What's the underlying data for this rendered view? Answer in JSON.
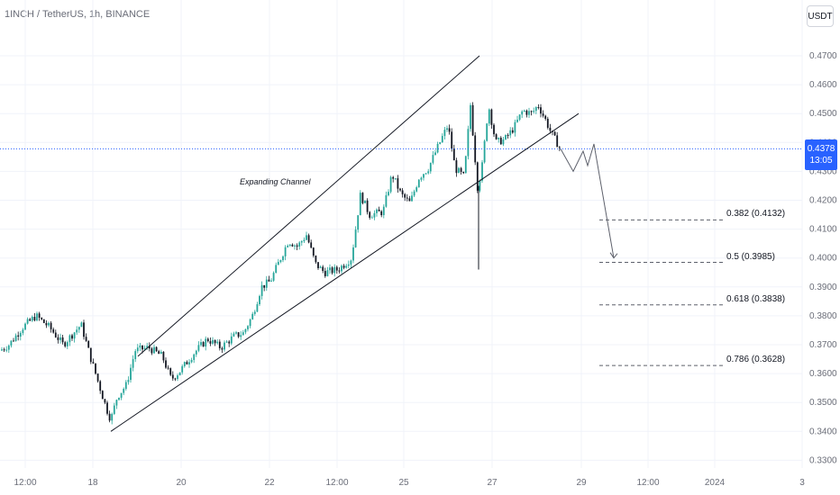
{
  "header": {
    "title": "1INCH / TetherUS, 1h, BINANCE",
    "currency_label": "USDT"
  },
  "last_price": {
    "value": "0.4378",
    "countdown": "13:05"
  },
  "colors": {
    "up": "#26a69a",
    "down": "#131722",
    "price_line": "#2962ff",
    "grid": "#f0f3fa",
    "axis_text": "#6a6d78"
  },
  "chart_data": {
    "type": "candlestick",
    "title": "",
    "y_ticks": [
      "0.4700",
      "0.4600",
      "0.4500",
      "0.4400",
      "0.4300",
      "0.4200",
      "0.4100",
      "0.4000",
      "0.3900",
      "0.3800",
      "0.3700",
      "0.3600",
      "0.3500",
      "0.3400",
      "0.3300"
    ],
    "x_ticks": [
      "12:00",
      "18",
      "20",
      "22",
      "12:00",
      "25",
      "27",
      "29",
      "12:00",
      "2024",
      "3"
    ],
    "ylim": [
      0.33,
      0.47
    ],
    "price_path": [
      [
        0,
        0.368
      ],
      [
        10,
        0.37
      ],
      [
        25,
        0.376
      ],
      [
        40,
        0.38
      ],
      [
        55,
        0.376
      ],
      [
        70,
        0.37
      ],
      [
        90,
        0.377
      ],
      [
        100,
        0.366
      ],
      [
        110,
        0.356
      ],
      [
        118,
        0.348
      ],
      [
        123,
        0.344
      ],
      [
        130,
        0.352
      ],
      [
        140,
        0.356
      ],
      [
        150,
        0.368
      ],
      [
        165,
        0.369
      ],
      [
        180,
        0.366
      ],
      [
        190,
        0.358
      ],
      [
        200,
        0.361
      ],
      [
        215,
        0.367
      ],
      [
        230,
        0.372
      ],
      [
        245,
        0.369
      ],
      [
        260,
        0.373
      ],
      [
        270,
        0.374
      ],
      [
        280,
        0.38
      ],
      [
        290,
        0.39
      ],
      [
        300,
        0.392
      ],
      [
        310,
        0.399
      ],
      [
        320,
        0.406
      ],
      [
        330,
        0.404
      ],
      [
        340,
        0.408
      ],
      [
        350,
        0.398
      ],
      [
        360,
        0.395
      ],
      [
        375,
        0.396
      ],
      [
        390,
        0.4
      ],
      [
        400,
        0.422
      ],
      [
        410,
        0.415
      ],
      [
        425,
        0.416
      ],
      [
        435,
        0.429
      ],
      [
        445,
        0.422
      ],
      [
        455,
        0.419
      ],
      [
        465,
        0.428
      ],
      [
        475,
        0.431
      ],
      [
        488,
        0.44
      ],
      [
        497,
        0.446
      ],
      [
        505,
        0.431
      ],
      [
        515,
        0.428
      ],
      [
        522,
        0.453
      ],
      [
        530,
        0.424
      ],
      [
        535,
        0.432
      ],
      [
        542,
        0.453
      ],
      [
        550,
        0.44
      ],
      [
        560,
        0.441
      ],
      [
        570,
        0.445
      ],
      [
        580,
        0.451
      ],
      [
        590,
        0.45
      ],
      [
        597,
        0.453
      ],
      [
        605,
        0.448
      ],
      [
        612,
        0.443
      ],
      [
        622,
        0.4378
      ]
    ],
    "channel_lines": [
      {
        "from": [
          123,
          0.34
        ],
        "to": [
          642,
          0.45
        ]
      },
      {
        "from": [
          153,
          0.366
        ],
        "to": [
          532,
          0.47
        ]
      }
    ],
    "channel_label": "Expanding Channel",
    "projection": [
      [
        622,
        0.4378
      ],
      [
        636,
        0.43
      ],
      [
        647,
        0.437
      ],
      [
        652,
        0.432
      ],
      [
        659,
        0.4395
      ],
      [
        681,
        0.4
      ]
    ],
    "wick_low": 0.396,
    "fib_levels": [
      {
        "label": "0.382 (0.4132)",
        "value": 0.4132
      },
      {
        "label": "0.5 (0.3985)",
        "value": 0.3985
      },
      {
        "label": "0.618 (0.3838)",
        "value": 0.3838
      },
      {
        "label": "0.786 (0.3628)",
        "value": 0.3628
      }
    ]
  }
}
